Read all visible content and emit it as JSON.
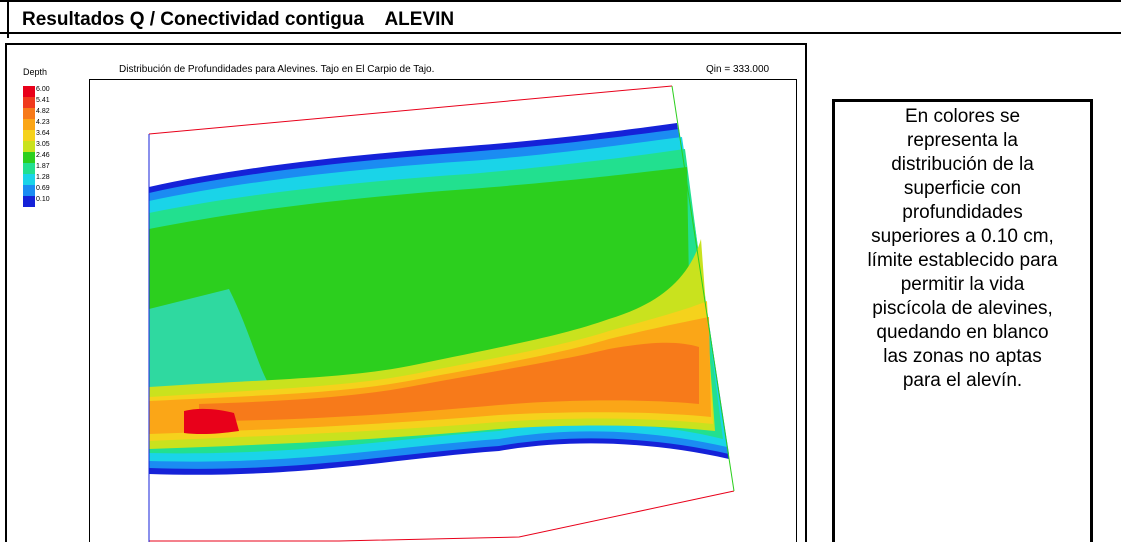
{
  "header": {
    "title": "Resultados Q / Conectividad contigua    ALEVIN"
  },
  "chart": {
    "title": "Distribución de Profundidades para Alevines. Tajo en El Carpio de Tajo.",
    "qin": "Qin = 333.000",
    "legend_title": "Depth",
    "legend": [
      {
        "label": "6.00",
        "color": "#e8001a"
      },
      {
        "label": "5.41",
        "color": "#f03a1d"
      },
      {
        "label": "4.82",
        "color": "#f77a1a"
      },
      {
        "label": "4.23",
        "color": "#fba617"
      },
      {
        "label": "3.64",
        "color": "#f5d21c"
      },
      {
        "label": "3.05",
        "color": "#c9e21e"
      },
      {
        "label": "2.46",
        "color": "#2ccf1e"
      },
      {
        "label": "1.87",
        "color": "#22e08f"
      },
      {
        "label": "1.28",
        "color": "#1ad4e8"
      },
      {
        "label": "0.69",
        "color": "#1b8cf2"
      },
      {
        "label": "0.10",
        "color": "#1522d8"
      }
    ]
  },
  "note": {
    "lines": [
      "En colores se",
      "representa la",
      "distribución de la",
      "superficie con",
      "profundidades",
      "superiores a  0.10 cm,",
      "límite establecido para",
      "permitir la vida",
      "piscícola de alevines,",
      "quedando en blanco",
      "las zonas no aptas",
      "para el alevín."
    ]
  }
}
